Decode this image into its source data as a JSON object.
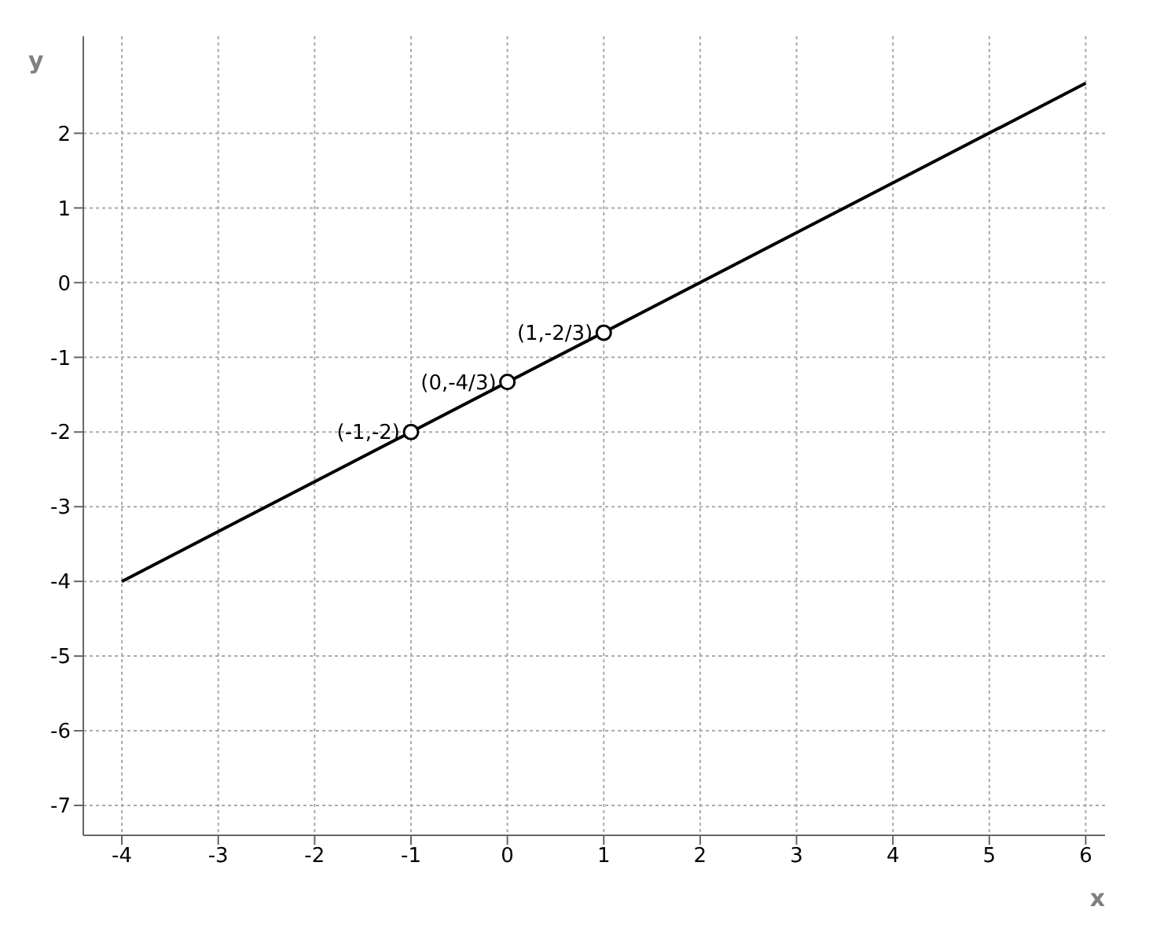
{
  "chart_data": {
    "type": "line",
    "xlabel": "x",
    "ylabel": "y",
    "xlim": [
      -4.4,
      6.2
    ],
    "ylim": [
      -7.4,
      3.3
    ],
    "xticks": [
      -4,
      -3,
      -2,
      -1,
      0,
      1,
      2,
      3,
      4,
      5,
      6
    ],
    "yticks": [
      -7,
      -6,
      -5,
      -4,
      -3,
      -2,
      -1,
      0,
      1,
      2
    ],
    "grid": true,
    "series": [
      {
        "color": "#000000",
        "x": [
          -4,
          6
        ],
        "values": [
          -4,
          2.67
        ],
        "marker": "none",
        "line_style": "solid"
      },
      {
        "type": "scatter",
        "color": "#000000",
        "x": [
          -1,
          0,
          1
        ],
        "values": [
          -2,
          -1.33,
          -0.67
        ],
        "marker": "circle"
      }
    ],
    "annotations": [
      {
        "text": "(-1,-2)",
        "x": -1,
        "y": -2
      },
      {
        "text": "(0,-4/3)",
        "x": 0,
        "y": -1.33
      },
      {
        "text": "(1,-2/3)",
        "x": 1,
        "y": -0.67
      }
    ]
  }
}
